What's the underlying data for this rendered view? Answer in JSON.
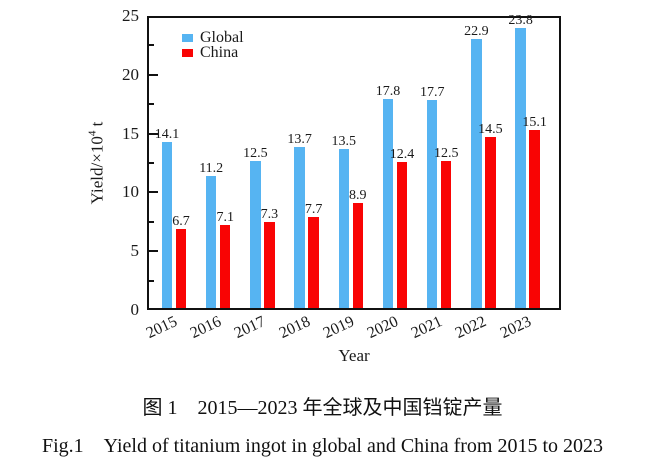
{
  "chart_data": {
    "type": "bar",
    "categories": [
      "2015",
      "2016",
      "2017",
      "2018",
      "2019",
      "2020",
      "2021",
      "2022",
      "2023"
    ],
    "series": [
      {
        "name": "Global",
        "color": "#56b4f2",
        "values": [
          14.1,
          11.2,
          12.5,
          13.7,
          13.5,
          17.8,
          17.7,
          22.9,
          23.8
        ]
      },
      {
        "name": "China",
        "color": "#f90404",
        "values": [
          6.7,
          7.1,
          7.3,
          7.7,
          8.9,
          12.4,
          12.5,
          14.5,
          15.1
        ]
      }
    ],
    "xlabel": "Year",
    "ylabel": {
      "prefix": "Yield/×10",
      "sup": "4",
      "suffix": " t"
    },
    "ylim": [
      0,
      25
    ],
    "ytick_major": [
      0,
      5,
      10,
      15,
      20,
      25
    ],
    "ytick_minor": [
      2.5,
      7.5,
      12.5,
      17.5,
      22.5
    ],
    "legend_position": "top-left",
    "grid": false,
    "value_labels": true
  },
  "captions": {
    "zh": "图 1　2015—2023 年全球及中国铛锭产量",
    "en": "Fig.1 Yield of titanium ingot in global and China from 2015 to 2023"
  }
}
